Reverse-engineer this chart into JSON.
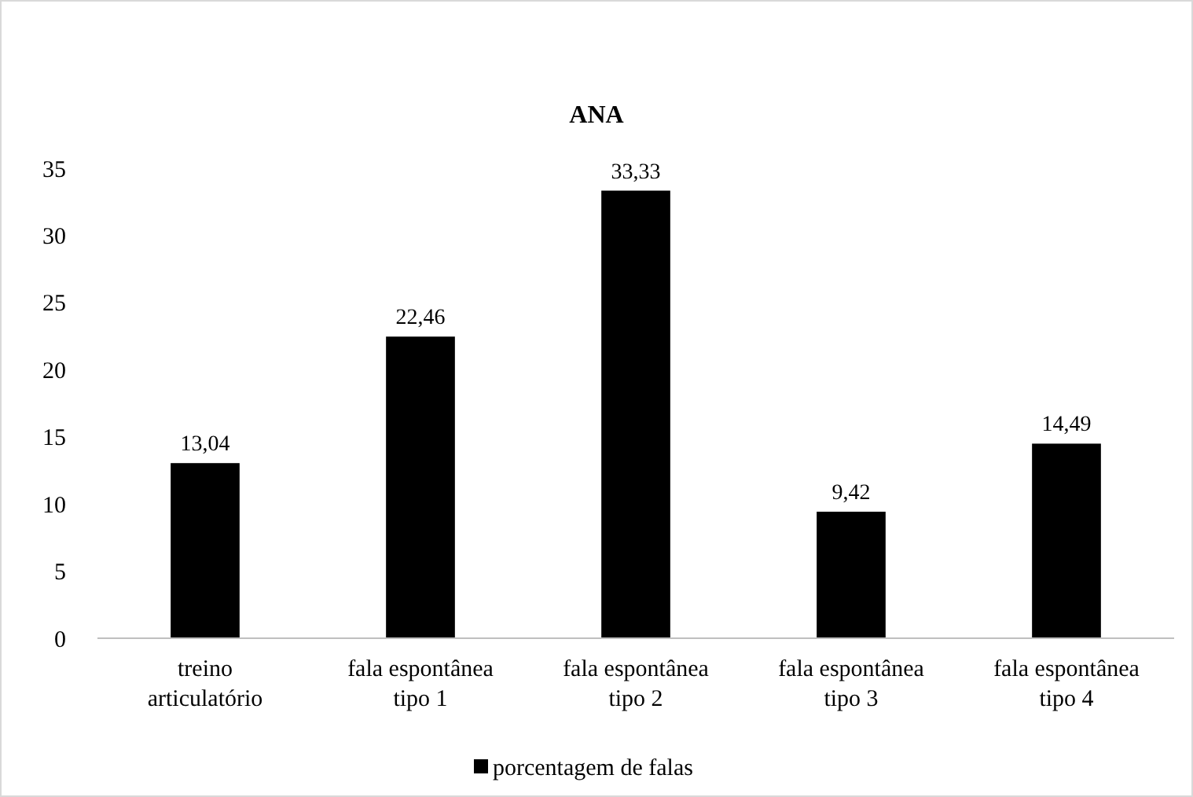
{
  "chart_data": {
    "type": "bar",
    "title": "ANA",
    "categories": [
      "treino articulatório",
      "fala espontânea tipo 1",
      "fala espontânea tipo 2",
      "fala espontânea tipo 3",
      "fala espontânea tipo 4"
    ],
    "series": [
      {
        "name": "porcentagem de falas",
        "color": "#000000",
        "values": [
          13.04,
          22.46,
          33.33,
          9.42,
          14.49
        ],
        "value_labels": [
          "13,04",
          "22,46",
          "33,33",
          "9,42",
          "14,49"
        ]
      }
    ],
    "ylim": [
      0,
      35
    ],
    "yticks": [
      0,
      5,
      10,
      15,
      20,
      25,
      30,
      35
    ],
    "grid": false,
    "legend": "bottom"
  }
}
